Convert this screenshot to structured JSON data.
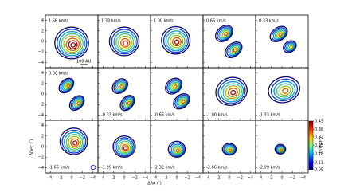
{
  "chart_data": {
    "type": "contour",
    "panels": [
      "1.66 km/s",
      "1.33 km/s",
      "1.00 km/s",
      "0.66 km/s",
      "0.33 km/s",
      "0.00 km/s",
      "-0.33 km/s",
      "-0.66 km/s",
      "-1.00 km/s",
      "-1.33 km/s",
      "-1.66 km/s",
      "-1.99 km/s",
      "-2.32 km/s",
      "-2.66 km/s",
      "-2.99 km/s"
    ],
    "scale_bar": "100 AU",
    "x_label": "ΔRA (″)",
    "y_label": "ΔDec (″)",
    "xlim": [
      5,
      -5
    ],
    "ylim": [
      -5,
      5
    ],
    "xticks": [
      4,
      2,
      0,
      {
        "value": -2,
        "label": "−2"
      },
      {
        "value": -4,
        "label": "−4"
      }
    ],
    "yticks": [
      4,
      2,
      0,
      {
        "value": -2,
        "label": "−2"
      },
      {
        "value": -4,
        "label": "−4"
      }
    ],
    "colorbar_label": "Jy/beam",
    "clim": [
      0.05,
      0.45
    ],
    "colorbar_ticks": [
      0.45,
      0.38,
      0.32,
      0.25,
      0.18,
      0.11,
      0.05
    ]
  }
}
